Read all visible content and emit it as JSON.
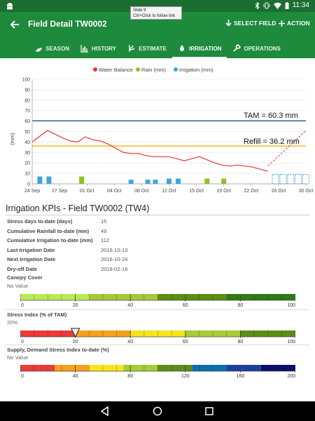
{
  "status_bar": {
    "time": "11:34"
  },
  "tooltip": {
    "line1": "Slide 9",
    "line2": "Ctrl+Click to follow link"
  },
  "app_bar": {
    "title": "Field Detail TW0002",
    "select_field": "SELECT FIELD",
    "action": "ACTION"
  },
  "tabs": [
    {
      "label": "SEASON",
      "icon": "season-icon"
    },
    {
      "label": "HISTORY",
      "icon": "history-icon"
    },
    {
      "label": "ESTIMATE",
      "icon": "estimate-icon"
    },
    {
      "label": "IRRIGATION",
      "icon": "irrigation-icon",
      "active": true
    },
    {
      "label": "OPERATIONS",
      "icon": "operations-icon"
    }
  ],
  "chart_data": {
    "type": "line",
    "ylabel": "(mm)",
    "ylim": [
      0,
      100
    ],
    "yticks": [
      0,
      10,
      20,
      30,
      40,
      50,
      60,
      70,
      80,
      90,
      100
    ],
    "xticks": [
      "24 Sep",
      "27 Sep",
      "01 Oct",
      "04 Oct",
      "08 Oct",
      "12 Oct",
      "15 Oct",
      "19 Oct",
      "22 Oct",
      "26 Oct",
      "30 Oct"
    ],
    "xrange_days": [
      0,
      36
    ],
    "legend": [
      "Water Balance",
      "Rain (mm)",
      "Irrigation (mm)"
    ],
    "colors": {
      "water_balance": "#e8353b",
      "rain": "#8dc21f",
      "irrigation": "#3aa6e0",
      "tam": "#1f4fa3",
      "refill": "#f3b312"
    },
    "tam": {
      "value": 60.3,
      "label": "TAM = 60.3 mm"
    },
    "refill": {
      "value": 36.2,
      "label": "Refill = 36.2 mm"
    },
    "water_balance": [
      [
        0,
        40
      ],
      [
        2,
        51
      ],
      [
        4,
        44
      ],
      [
        5,
        41
      ],
      [
        6,
        40
      ],
      [
        7,
        45
      ],
      [
        8,
        42
      ],
      [
        9,
        41
      ],
      [
        10,
        38
      ],
      [
        11,
        34
      ],
      [
        12,
        30
      ],
      [
        13,
        29
      ],
      [
        14,
        29
      ],
      [
        15,
        27
      ],
      [
        16,
        26
      ],
      [
        17,
        26
      ],
      [
        18,
        26
      ],
      [
        19,
        24
      ],
      [
        20,
        22
      ],
      [
        21,
        24
      ],
      [
        22,
        26
      ],
      [
        23,
        23
      ],
      [
        24,
        20
      ],
      [
        25,
        18
      ],
      [
        26,
        17
      ],
      [
        27,
        18
      ],
      [
        28,
        17
      ],
      [
        29,
        16
      ],
      [
        30,
        14
      ],
      [
        31,
        12
      ]
    ],
    "forecast": [
      [
        31,
        17
      ],
      [
        36,
        51
      ]
    ],
    "irrigation_bars": [
      {
        "day": 1.0,
        "value": 7
      },
      {
        "day": 2.2,
        "value": 7
      },
      {
        "day": 13.0,
        "value": 4
      },
      {
        "day": 15.2,
        "value": 4
      },
      {
        "day": 16.2,
        "value": 4
      },
      {
        "day": 18.0,
        "value": 5
      },
      {
        "day": 19.2,
        "value": 5
      }
    ],
    "rain_bars": [
      {
        "day": 6.5,
        "value": 7
      },
      {
        "day": 23.0,
        "value": 5
      },
      {
        "day": 25.2,
        "value": 5
      }
    ],
    "forecast_irrigation": [
      32,
      33,
      34,
      35,
      36
    ]
  },
  "kpi": {
    "title": "Irrigation KPIs - Field TW0002 (TW4)",
    "rows": [
      {
        "label": "Stress days to-date (days)",
        "value": "15"
      },
      {
        "label": "Cumulative Rainfall to-date (mm)",
        "value": "49"
      },
      {
        "label": "Cumulative Irrigation to-date (mm)",
        "value": "112"
      },
      {
        "label": "Last Irrigation Date",
        "value": "2016-10-13"
      },
      {
        "label": "Next Irrigation Date",
        "value": "2016-10-24"
      },
      {
        "label": "Dry-off Date",
        "value": "2018-02-16"
      }
    ]
  },
  "canopy": {
    "label": "Canopy Cover",
    "sub": "No Value",
    "ticks": [
      "0",
      "20",
      "40",
      "60",
      "80",
      "100"
    ],
    "segments": [
      "#b9ea56",
      "#a4c83a",
      "#5e8d12",
      "#2f7a15"
    ]
  },
  "stress": {
    "label": "Stress Index (% of TAM)",
    "sub": "20%",
    "value": 20,
    "ticks": [
      "0",
      "20",
      "40",
      "60",
      "80",
      "100"
    ],
    "segments": [
      "#ec3a3a",
      "#f6a117",
      "#f7e51a",
      "#a6cc33",
      "#5c8d15"
    ]
  },
  "supply": {
    "label": "Supply, Demand Stress Index to-date (%)",
    "sub": "No Value",
    "ticks": [
      "0",
      "40",
      "80",
      "120",
      "160",
      "200"
    ],
    "segments": [
      "#ec3a3a",
      "#f6a117",
      "#f7e51a",
      "#a6cc33",
      "#5c8d15",
      "#0a6fb0",
      "#1d3ea3",
      "#0a0e6c"
    ]
  }
}
